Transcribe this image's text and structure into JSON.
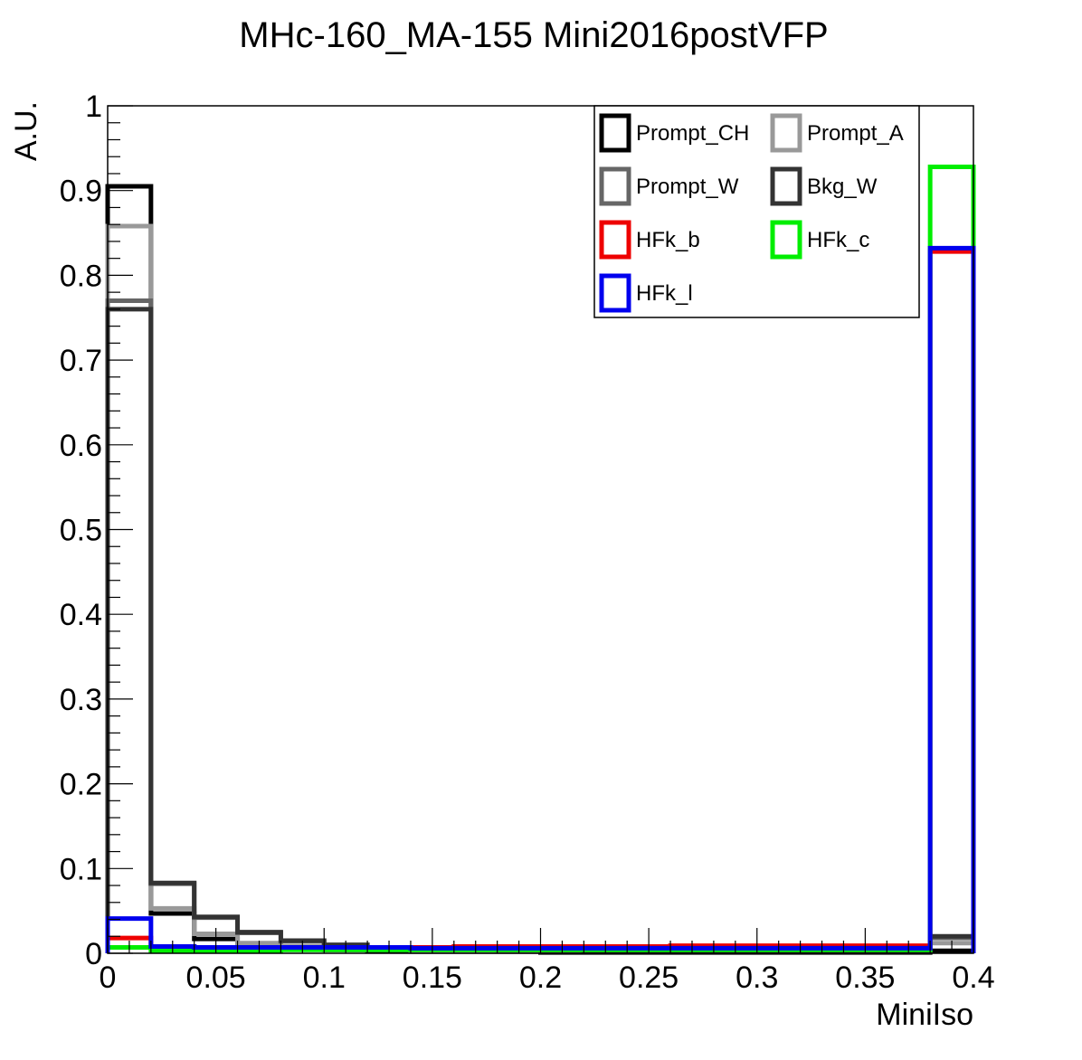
{
  "chart_data": {
    "type": "step",
    "title": "MHc-160_MA-155  Mini2016postVFP",
    "xlabel": "MiniIso",
    "ylabel": "A.U.",
    "xlim": [
      0,
      0.4
    ],
    "ylim": [
      0,
      1
    ],
    "x_ticks": [
      "0",
      "0.05",
      "0.1",
      "0.15",
      "0.2",
      "0.25",
      "0.3",
      "0.35",
      "0.4"
    ],
    "y_ticks": [
      "0",
      "0.1",
      "0.2",
      "0.3",
      "0.4",
      "0.5",
      "0.6",
      "0.7",
      "0.8",
      "0.9",
      "1"
    ],
    "bin_edges": [
      0,
      0.02,
      0.04,
      0.06,
      0.08,
      0.1,
      0.12,
      0.14,
      0.16,
      0.18,
      0.2,
      0.22,
      0.24,
      0.26,
      0.28,
      0.3,
      0.32,
      0.34,
      0.36,
      0.38,
      0.4
    ],
    "legend_position": "top-right",
    "grid": false,
    "series": [
      {
        "name": "Prompt_CH",
        "color": "#000000",
        "values": [
          0.905,
          0.047,
          0.017,
          0.01,
          0.006,
          0.004,
          0.003,
          0.002,
          0.002,
          0.002,
          0.001,
          0.001,
          0.001,
          0.001,
          0.001,
          0.001,
          0.001,
          0.001,
          0.001,
          0.003
        ]
      },
      {
        "name": "Prompt_A",
        "color": "#999999",
        "values": [
          0.858,
          0.053,
          0.023,
          0.012,
          0.008,
          0.006,
          0.004,
          0.003,
          0.003,
          0.002,
          0.002,
          0.002,
          0.002,
          0.002,
          0.002,
          0.002,
          0.002,
          0.002,
          0.002,
          0.012
        ]
      },
      {
        "name": "Prompt_W",
        "color": "#666666",
        "values": [
          0.77,
          0.082,
          0.042,
          0.024,
          0.014,
          0.009,
          0.007,
          0.005,
          0.005,
          0.004,
          0.003,
          0.003,
          0.003,
          0.003,
          0.003,
          0.003,
          0.003,
          0.002,
          0.002,
          0.018
        ]
      },
      {
        "name": "Bkg_W",
        "color": "#333333",
        "values": [
          0.76,
          0.083,
          0.043,
          0.025,
          0.015,
          0.01,
          0.007,
          0.006,
          0.005,
          0.004,
          0.004,
          0.003,
          0.003,
          0.003,
          0.003,
          0.003,
          0.003,
          0.003,
          0.002,
          0.02
        ]
      },
      {
        "name": "HFk_b",
        "color": "#ee0000",
        "values": [
          0.018,
          0.008,
          0.007,
          0.007,
          0.007,
          0.007,
          0.007,
          0.007,
          0.008,
          0.008,
          0.008,
          0.008,
          0.008,
          0.009,
          0.009,
          0.009,
          0.009,
          0.009,
          0.009,
          0.828
        ]
      },
      {
        "name": "HFk_c",
        "color": "#00ee00",
        "values": [
          0.007,
          0.003,
          0.003,
          0.003,
          0.004,
          0.004,
          0.004,
          0.004,
          0.004,
          0.004,
          0.004,
          0.004,
          0.004,
          0.004,
          0.004,
          0.004,
          0.004,
          0.004,
          0.004,
          0.928
        ]
      },
      {
        "name": "HFk_l",
        "color": "#0000ee",
        "values": [
          0.041,
          0.008,
          0.007,
          0.007,
          0.007,
          0.007,
          0.007,
          0.006,
          0.006,
          0.006,
          0.006,
          0.006,
          0.006,
          0.006,
          0.006,
          0.006,
          0.006,
          0.006,
          0.006,
          0.832
        ]
      }
    ]
  }
}
